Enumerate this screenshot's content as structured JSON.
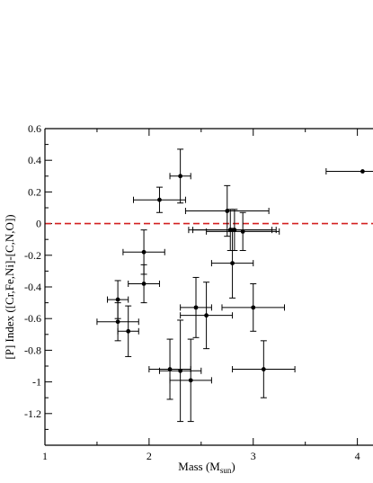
{
  "chart_data": {
    "type": "scatter",
    "xlabel": "Mass (M",
    "xlabel_sub": "sun",
    "xlabel_close": ")",
    "ylabel": "[P] Index ([Cr,Fe,Ni]-[C,N,O])",
    "xlim": [
      1,
      4.15
    ],
    "ylim": [
      -1.4,
      0.6
    ],
    "x_ticks": [
      1,
      2,
      3,
      4
    ],
    "x_tick_labels": [
      "1",
      "2",
      "3",
      "4"
    ],
    "y_ticks": [
      -1.2,
      -1,
      -0.8,
      -0.6,
      -0.4,
      -0.2,
      0,
      0.2,
      0.4,
      0.6
    ],
    "y_tick_labels": [
      "-1.2",
      "-1",
      "-0.8",
      "-0.6",
      "-0.4",
      "-0.2",
      "0",
      "0.2",
      "0.4",
      "0.6"
    ],
    "reference_line": {
      "y": 0,
      "color": "#d42020",
      "style": "dashed"
    },
    "point_color": "#000000",
    "points": [
      {
        "x": 1.7,
        "y": -0.48,
        "xerr": 0.1,
        "yerr": 0.12
      },
      {
        "x": 1.7,
        "y": -0.62,
        "xerr": 0.2,
        "yerr": 0.12
      },
      {
        "x": 1.8,
        "y": -0.68,
        "xerr": 0.1,
        "yerr": 0.16
      },
      {
        "x": 1.95,
        "y": -0.18,
        "xerr": 0.2,
        "yerr": 0.14
      },
      {
        "x": 1.95,
        "y": -0.38,
        "xerr": 0.15,
        "yerr": 0.12
      },
      {
        "x": 2.1,
        "y": 0.15,
        "xerr": 0.25,
        "yerr": 0.08
      },
      {
        "x": 2.3,
        "y": 0.3,
        "xerr": 0.1,
        "yerr": 0.17
      },
      {
        "x": 2.2,
        "y": -0.92,
        "xerr": 0.2,
        "yerr": 0.19
      },
      {
        "x": 2.3,
        "y": -0.93,
        "xerr": 0.2,
        "yerr": 0.32
      },
      {
        "x": 2.4,
        "y": -0.99,
        "xerr": 0.2,
        "yerr": 0.26
      },
      {
        "x": 2.45,
        "y": -0.53,
        "xerr": 0.15,
        "yerr": 0.19
      },
      {
        "x": 2.55,
        "y": -0.58,
        "xerr": 0.25,
        "yerr": 0.21
      },
      {
        "x": 2.75,
        "y": 0.08,
        "xerr": 0.4,
        "yerr": 0.16
      },
      {
        "x": 2.78,
        "y": -0.04,
        "xerr": 0.4,
        "yerr": 0.13
      },
      {
        "x": 2.82,
        "y": -0.04,
        "xerr": 0.4,
        "yerr": 0.13
      },
      {
        "x": 2.9,
        "y": -0.05,
        "xerr": 0.35,
        "yerr": 0.12
      },
      {
        "x": 2.8,
        "y": -0.25,
        "xerr": 0.2,
        "yerr": 0.22
      },
      {
        "x": 3.0,
        "y": -0.53,
        "xerr": 0.3,
        "yerr": 0.15
      },
      {
        "x": 3.1,
        "y": -0.92,
        "xerr": 0.3,
        "yerr": 0.18
      },
      {
        "x": 4.05,
        "y": 0.33,
        "xerr": 0.35,
        "yerr": 0.0
      }
    ]
  }
}
